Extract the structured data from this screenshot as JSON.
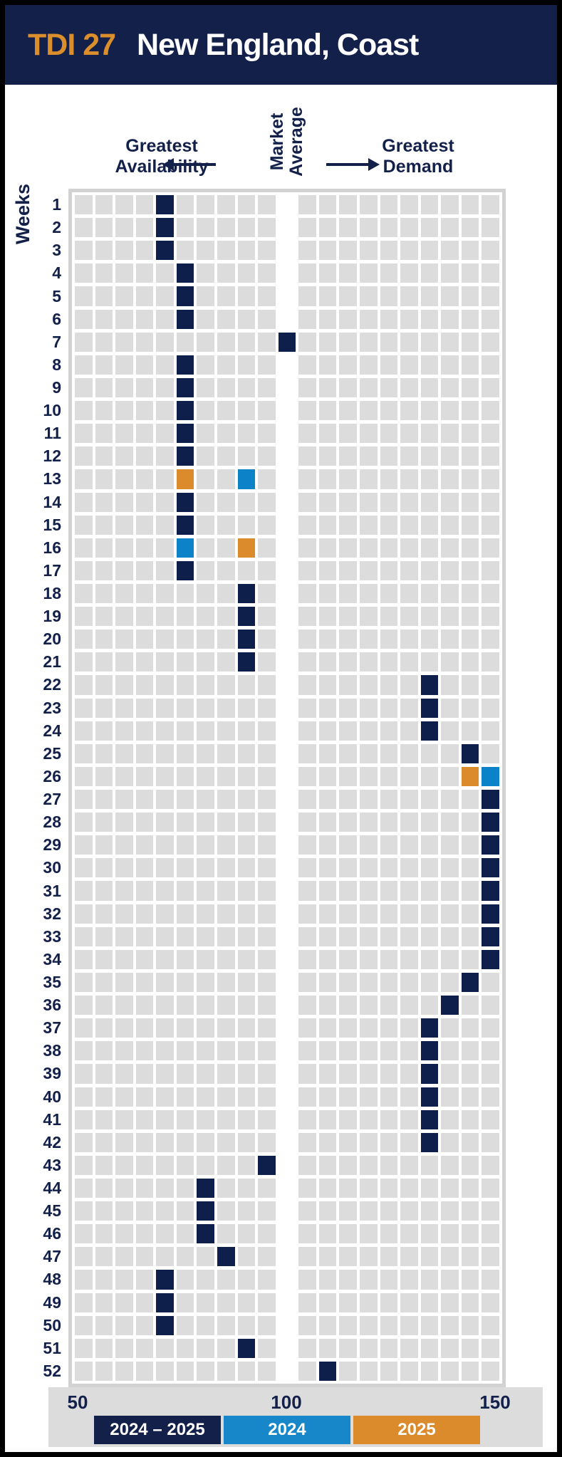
{
  "header": {
    "tdi": "TDI 27",
    "title": "New England, Coast"
  },
  "annotations": {
    "availability": {
      "line1": "Greatest",
      "line2": "Availability"
    },
    "market_average": {
      "line1": "Market",
      "line2": "Average"
    },
    "demand": {
      "line1": "Greatest",
      "line2": "Demand"
    }
  },
  "chart_data": {
    "type": "heatmap",
    "title": "TDI 27 New England, Coast",
    "x_axis": {
      "min": 50,
      "max": 150,
      "ticks": [
        "50",
        "100",
        "150"
      ],
      "n_slots": 21,
      "market_average_slot": 11,
      "value_per_slot": 4.76
    },
    "y_axis": {
      "label": "Weeks",
      "weeks": [
        1,
        2,
        3,
        4,
        5,
        6,
        7,
        8,
        9,
        10,
        11,
        12,
        13,
        14,
        15,
        16,
        17,
        18,
        19,
        20,
        21,
        22,
        23,
        24,
        25,
        26,
        27,
        28,
        29,
        30,
        31,
        32,
        33,
        34,
        35,
        36,
        37,
        38,
        39,
        40,
        41,
        42,
        43,
        44,
        45,
        46,
        47,
        48,
        49,
        50,
        51,
        52
      ]
    },
    "series_colors": {
      "2024-2025": "#0E1F4C",
      "2024": "#0C82C8",
      "2025": "#DC8B2C"
    },
    "empty_color": "#DCDCDC",
    "legend": [
      {
        "label": "2024 – 2025",
        "color": "#13204A"
      },
      {
        "label": "2024",
        "color": "#1787C9"
      },
      {
        "label": "2025",
        "color": "#DC8B2C"
      }
    ],
    "cells_format": [
      "week",
      "slot",
      "series"
    ],
    "cells": [
      [
        1,
        5,
        "2024-2025"
      ],
      [
        2,
        5,
        "2024-2025"
      ],
      [
        3,
        5,
        "2024-2025"
      ],
      [
        4,
        6,
        "2024-2025"
      ],
      [
        5,
        6,
        "2024-2025"
      ],
      [
        6,
        6,
        "2024-2025"
      ],
      [
        7,
        11,
        "2024-2025"
      ],
      [
        8,
        6,
        "2024-2025"
      ],
      [
        9,
        6,
        "2024-2025"
      ],
      [
        10,
        6,
        "2024-2025"
      ],
      [
        11,
        6,
        "2024-2025"
      ],
      [
        12,
        6,
        "2024-2025"
      ],
      [
        13,
        6,
        "2025"
      ],
      [
        13,
        9,
        "2024"
      ],
      [
        14,
        6,
        "2024-2025"
      ],
      [
        15,
        6,
        "2024-2025"
      ],
      [
        16,
        6,
        "2024"
      ],
      [
        16,
        9,
        "2025"
      ],
      [
        17,
        6,
        "2024-2025"
      ],
      [
        18,
        9,
        "2024-2025"
      ],
      [
        19,
        9,
        "2024-2025"
      ],
      [
        20,
        9,
        "2024-2025"
      ],
      [
        21,
        9,
        "2024-2025"
      ],
      [
        22,
        18,
        "2024-2025"
      ],
      [
        23,
        18,
        "2024-2025"
      ],
      [
        24,
        18,
        "2024-2025"
      ],
      [
        25,
        20,
        "2024-2025"
      ],
      [
        26,
        20,
        "2025"
      ],
      [
        26,
        21,
        "2024"
      ],
      [
        27,
        21,
        "2024-2025"
      ],
      [
        28,
        21,
        "2024-2025"
      ],
      [
        29,
        21,
        "2024-2025"
      ],
      [
        30,
        21,
        "2024-2025"
      ],
      [
        31,
        21,
        "2024-2025"
      ],
      [
        32,
        21,
        "2024-2025"
      ],
      [
        33,
        21,
        "2024-2025"
      ],
      [
        34,
        21,
        "2024-2025"
      ],
      [
        35,
        20,
        "2024-2025"
      ],
      [
        36,
        19,
        "2024-2025"
      ],
      [
        37,
        18,
        "2024-2025"
      ],
      [
        38,
        18,
        "2024-2025"
      ],
      [
        39,
        18,
        "2024-2025"
      ],
      [
        40,
        18,
        "2024-2025"
      ],
      [
        41,
        18,
        "2024-2025"
      ],
      [
        42,
        18,
        "2024-2025"
      ],
      [
        43,
        10,
        "2024-2025"
      ],
      [
        44,
        7,
        "2024-2025"
      ],
      [
        45,
        7,
        "2024-2025"
      ],
      [
        46,
        7,
        "2024-2025"
      ],
      [
        47,
        8,
        "2024-2025"
      ],
      [
        48,
        5,
        "2024-2025"
      ],
      [
        49,
        5,
        "2024-2025"
      ],
      [
        50,
        5,
        "2024-2025"
      ],
      [
        51,
        9,
        "2024-2025"
      ],
      [
        52,
        13,
        "2024-2025"
      ]
    ]
  }
}
